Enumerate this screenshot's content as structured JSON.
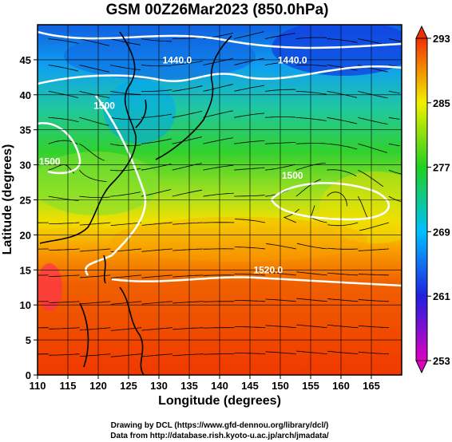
{
  "chart_data": {
    "type": "heatmap",
    "title": "GSM 00Z26Mar2023 (850.0hPa)",
    "xlabel": "Longitude (degrees)",
    "ylabel": "Latitude  (degrees)",
    "xlim": [
      110,
      170
    ],
    "ylim": [
      0,
      50
    ],
    "xticks": [
      "110",
      "115",
      "120",
      "125",
      "130",
      "135",
      "140",
      "145",
      "150",
      "155",
      "160",
      "165"
    ],
    "yticks": [
      "0",
      "5",
      "10",
      "15",
      "20",
      "25",
      "30",
      "35",
      "40",
      "45"
    ],
    "colorbar": {
      "min": 253,
      "max": 293,
      "labels": [
        "253",
        "261",
        "269",
        "277",
        "285",
        "293"
      ],
      "colors": [
        "#e000c0",
        "#2020e0",
        "#00c0ff",
        "#20d020",
        "#f0f000",
        "#f03000"
      ]
    },
    "contour_labels": [
      {
        "text": "1440.0",
        "lon": 133,
        "lat": 44.5
      },
      {
        "text": "1440.0",
        "lon": 152,
        "lat": 44.5
      },
      {
        "text": "1500",
        "lon": 121,
        "lat": 38
      },
      {
        "text": "1500",
        "lon": 112,
        "lat": 30
      },
      {
        "text": "1500",
        "lon": 152,
        "lat": 28
      },
      {
        "text": "1520.0",
        "lon": 148,
        "lat": 14.5
      }
    ],
    "grid": true,
    "overlay": "streamlines"
  },
  "credits": {
    "line1": "Drawing by DCL (https://www.gfd-dennou.org/library/dcl/)",
    "line2": "Data from http://database.rish.kyoto-u.ac.jp/arch/jmadata/"
  }
}
